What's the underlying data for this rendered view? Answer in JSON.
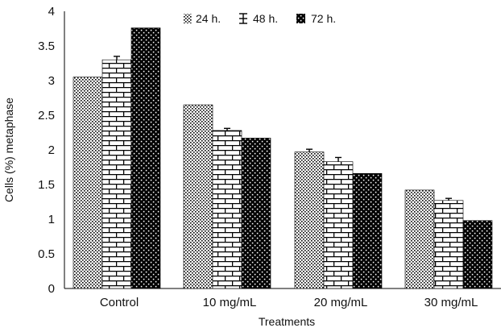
{
  "chart_data": {
    "type": "bar",
    "title": "",
    "xlabel": "Treatments",
    "ylabel": "Cells (%) metaphase",
    "categories": [
      "Control",
      "10 mg/mL",
      "20 mg/mL",
      "30 mg/mL"
    ],
    "series": [
      {
        "name": "24 h.",
        "values": [
          3.05,
          2.65,
          1.97,
          1.42
        ],
        "error": [
          0.0,
          0.0,
          0.04,
          0.0
        ],
        "pattern": "dots"
      },
      {
        "name": "48 h.",
        "values": [
          3.3,
          2.28,
          1.83,
          1.27
        ],
        "error": [
          0.05,
          0.03,
          0.06,
          0.03
        ],
        "pattern": "bricks"
      },
      {
        "name": "72 h.",
        "values": [
          3.76,
          2.17,
          1.66,
          0.98
        ],
        "error": [
          0.0,
          0.0,
          0.0,
          0.0
        ],
        "pattern": "checker"
      }
    ],
    "ylim": [
      0,
      4
    ],
    "yticks": [
      "0",
      "0.5",
      "1",
      "1.5",
      "2",
      "2.5",
      "3",
      "3.5",
      "4"
    ],
    "grid": false,
    "legend_position": "top-center"
  }
}
